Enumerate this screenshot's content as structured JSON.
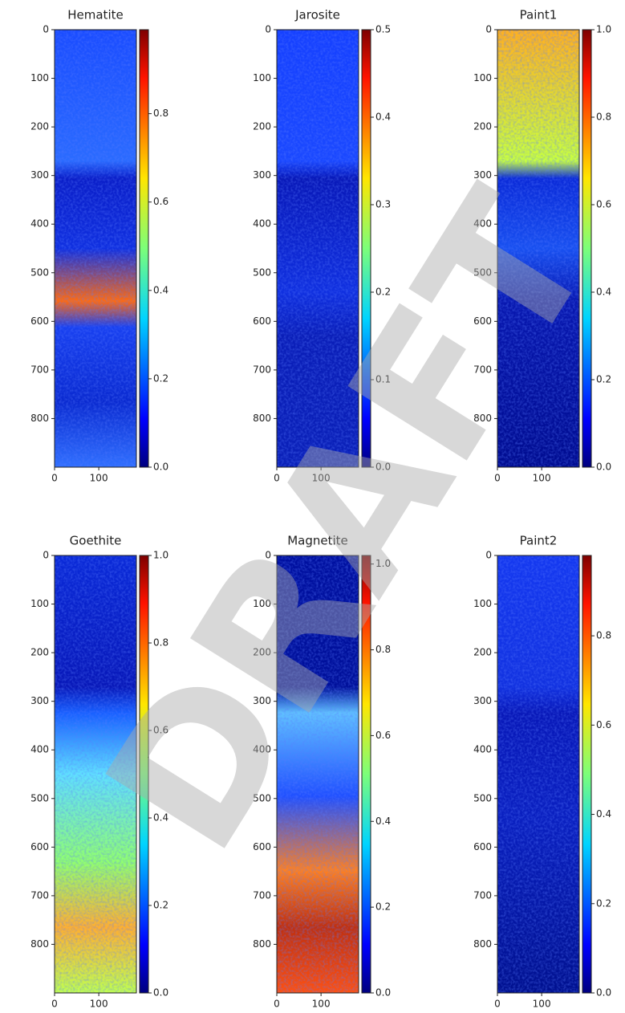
{
  "watermark": "DRAFT",
  "chart_data": [
    {
      "type": "heatmap",
      "title": "Hematite",
      "colormap": "jet",
      "xlim": [
        0,
        185
      ],
      "ylim": [
        900,
        0
      ],
      "xticks": [
        0,
        100
      ],
      "yticks": [
        0,
        100,
        200,
        300,
        400,
        500,
        600,
        700,
        800
      ],
      "clim": [
        0,
        0.99
      ],
      "cticks": [
        {
          "value": 0,
          "label": "0.0"
        },
        0.2,
        0.4,
        0.6,
        0.8
      ]
    },
    {
      "type": "heatmap",
      "title": "Jarosite",
      "colormap": "jet",
      "xlim": [
        0,
        185
      ],
      "ylim": [
        900,
        0
      ],
      "xticks": [
        0,
        100
      ],
      "yticks": [
        0,
        100,
        200,
        300,
        400,
        500,
        600,
        700,
        800
      ],
      "clim": [
        0,
        0.5
      ],
      "cticks": [
        {
          "value": 0,
          "label": "0.0"
        },
        0.1,
        0.2,
        0.3,
        0.4,
        0.5
      ]
    },
    {
      "type": "heatmap",
      "title": "Paint1",
      "colormap": "jet",
      "xlim": [
        0,
        185
      ],
      "ylim": [
        900,
        0
      ],
      "xticks": [
        0,
        100
      ],
      "yticks": [
        0,
        100,
        200,
        300,
        400,
        500,
        600,
        700,
        800
      ],
      "clim": [
        0,
        1
      ],
      "cticks": [
        {
          "value": 0,
          "label": "0.0"
        },
        0.2,
        0.4,
        0.6,
        0.8,
        {
          "value": 1,
          "label": "1.0"
        }
      ]
    },
    {
      "type": "heatmap",
      "title": "Goethite",
      "colormap": "jet",
      "xlim": [
        0,
        185
      ],
      "ylim": [
        900,
        0
      ],
      "xticks": [
        0,
        100
      ],
      "yticks": [
        0,
        100,
        200,
        300,
        400,
        500,
        600,
        700,
        800
      ],
      "clim": [
        0,
        1
      ],
      "cticks": [
        {
          "value": 0,
          "label": "0.0"
        },
        0.2,
        0.4,
        0.6,
        0.8,
        {
          "value": 1,
          "label": "1.0"
        }
      ]
    },
    {
      "type": "heatmap",
      "title": "Magnetite",
      "colormap": "jet",
      "xlim": [
        0,
        185
      ],
      "ylim": [
        900,
        0
      ],
      "xticks": [
        0,
        100
      ],
      "yticks": [
        0,
        100,
        200,
        300,
        400,
        500,
        600,
        700,
        800
      ],
      "clim": [
        0,
        1.02
      ],
      "cticks": [
        {
          "value": 0,
          "label": "0.0"
        },
        0.2,
        0.4,
        0.6,
        0.8,
        {
          "value": 1,
          "label": "1.0"
        }
      ]
    },
    {
      "type": "heatmap",
      "title": "Paint2",
      "colormap": "jet",
      "xlim": [
        0,
        185
      ],
      "ylim": [
        900,
        0
      ],
      "xticks": [
        0,
        100
      ],
      "yticks": [
        0,
        100,
        200,
        300,
        400,
        500,
        600,
        700,
        800
      ],
      "clim": [
        0,
        0.98
      ],
      "cticks": [
        {
          "value": 0,
          "label": "0.0"
        },
        0.2,
        0.4,
        0.6,
        0.8
      ]
    }
  ]
}
